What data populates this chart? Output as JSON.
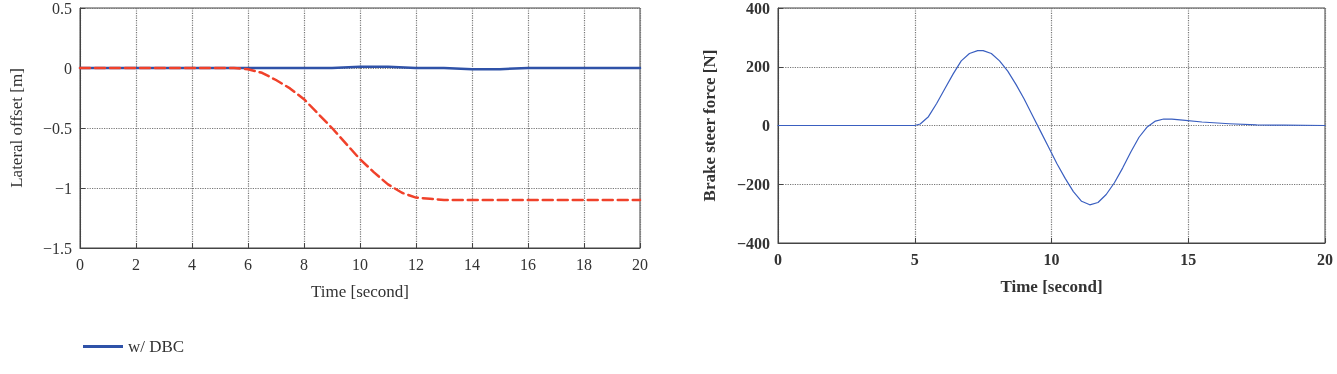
{
  "chart_data": [
    {
      "type": "line",
      "xlabel": "Time [second]",
      "ylabel": "Lateral offset [m]",
      "xlim": [
        0,
        20
      ],
      "ylim": [
        -1.5,
        0.5
      ],
      "xticks": [
        0,
        2,
        4,
        6,
        8,
        10,
        12,
        14,
        16,
        18,
        20
      ],
      "yticks": [
        -1.5,
        -1,
        -0.5,
        0,
        0.5
      ],
      "grid": true,
      "legend": "bottom",
      "marker": "none",
      "series": [
        {
          "name": "w/ DBC",
          "color": "#2f52a8",
          "line_style": "solid",
          "x": [
            0,
            2,
            4,
            6,
            7,
            8,
            9,
            10,
            11,
            12,
            13,
            14,
            15,
            16,
            18,
            20
          ],
          "values": [
            0,
            0,
            0,
            0,
            0,
            0,
            0,
            0.01,
            0.01,
            0,
            0,
            -0.01,
            -0.01,
            0,
            0,
            0
          ]
        },
        {
          "color": "#f0412a",
          "line_style": "dashed",
          "x": [
            0,
            2,
            4,
            5.5,
            6,
            6.5,
            7,
            7.5,
            8,
            8.5,
            9,
            9.5,
            10,
            10.5,
            11,
            11.5,
            12,
            12.5,
            13,
            14,
            16,
            18,
            20
          ],
          "values": [
            0,
            0,
            0,
            0,
            -0.01,
            -0.04,
            -0.1,
            -0.17,
            -0.26,
            -0.38,
            -0.5,
            -0.63,
            -0.76,
            -0.87,
            -0.97,
            -1.04,
            -1.08,
            -1.09,
            -1.1,
            -1.1,
            -1.1,
            -1.1,
            -1.1
          ]
        }
      ]
    },
    {
      "type": "line",
      "xlabel": "Time [second]",
      "ylabel": "Brake steer force [N]",
      "xlim": [
        0,
        20
      ],
      "ylim": [
        -400,
        400
      ],
      "xticks": [
        0,
        5,
        10,
        15,
        20
      ],
      "yticks": [
        -400,
        -200,
        0,
        200,
        400
      ],
      "grid": true,
      "marker": "none",
      "series": [
        {
          "color": "#3a5fc0",
          "line_style": "solid",
          "x": [
            0,
            2,
            4,
            5,
            5.2,
            5.5,
            5.8,
            6.1,
            6.4,
            6.7,
            7,
            7.3,
            7.5,
            7.8,
            8.1,
            8.4,
            8.7,
            9,
            9.3,
            9.6,
            9.9,
            10.2,
            10.5,
            10.8,
            11.1,
            11.4,
            11.7,
            12,
            12.3,
            12.6,
            12.9,
            13.2,
            13.5,
            13.8,
            14.1,
            14.4,
            14.8,
            15.5,
            16.5,
            17.5,
            18.5,
            20
          ],
          "values": [
            0,
            0,
            0,
            0,
            5,
            30,
            75,
            125,
            175,
            220,
            245,
            255,
            255,
            245,
            220,
            185,
            140,
            90,
            35,
            -20,
            -75,
            -130,
            -180,
            -225,
            -258,
            -270,
            -262,
            -235,
            -195,
            -145,
            -90,
            -40,
            -5,
            15,
            22,
            22,
            18,
            12,
            6,
            2,
            1,
            0
          ]
        }
      ]
    }
  ]
}
